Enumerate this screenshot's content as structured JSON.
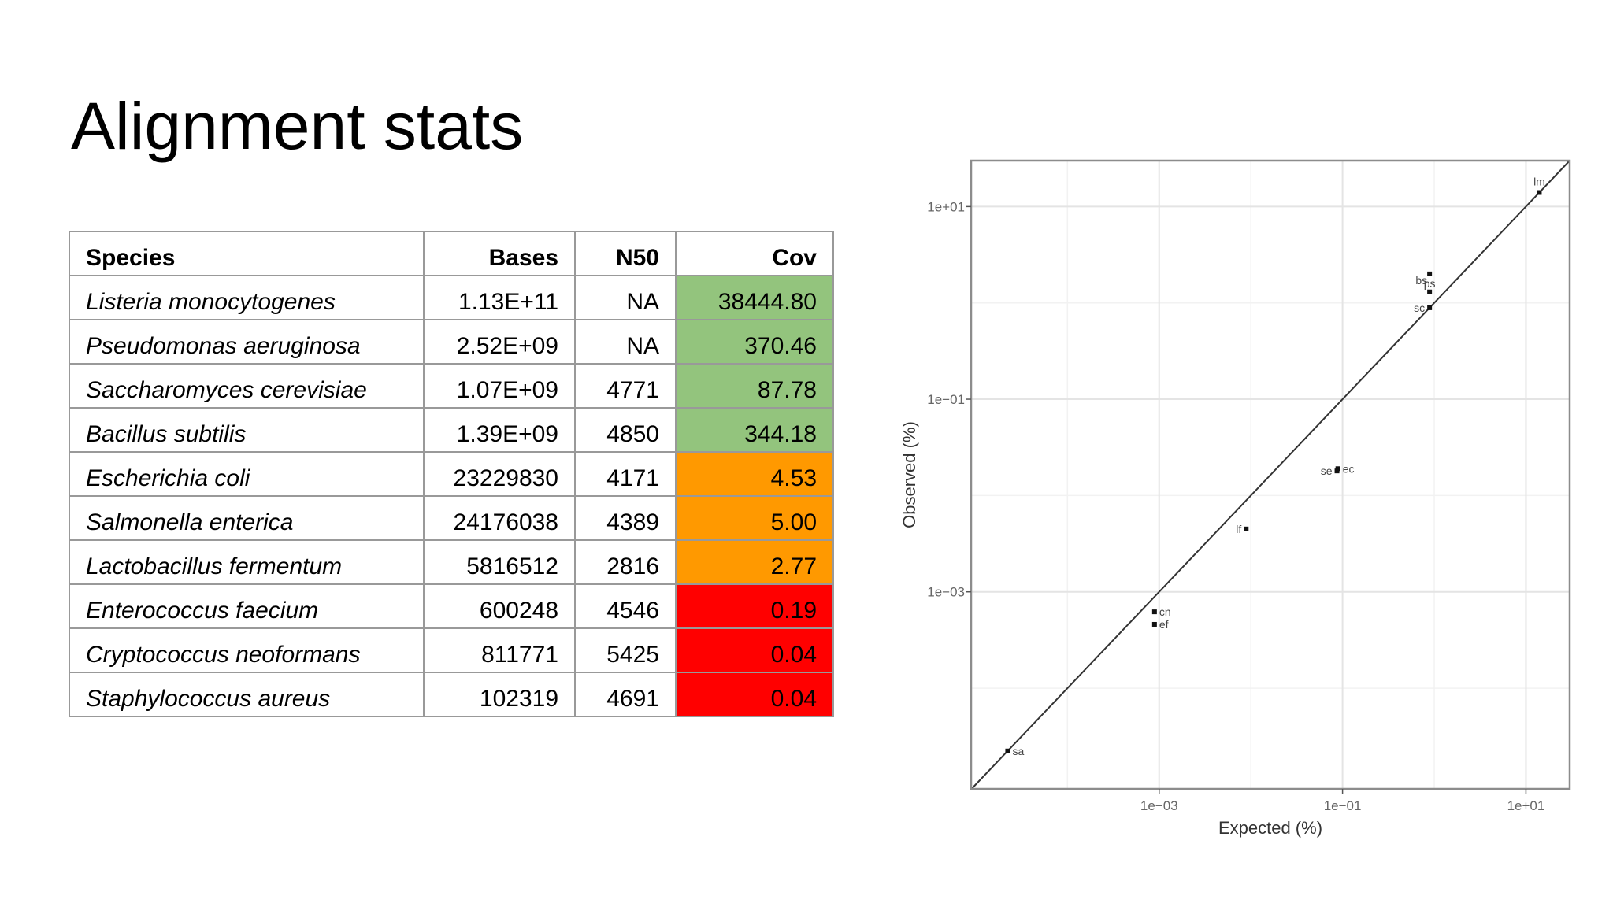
{
  "title": "Alignment stats",
  "table": {
    "headers": [
      "Species",
      "Bases",
      "N50",
      "Cov"
    ],
    "rows": [
      {
        "species": "Listeria monocytogenes",
        "bases": "1.13E+11",
        "n50": "NA",
        "cov": "38444.80",
        "status": "good"
      },
      {
        "species": "Pseudomonas aeruginosa",
        "bases": "2.52E+09",
        "n50": "NA",
        "cov": "370.46",
        "status": "good"
      },
      {
        "species": "Saccharomyces cerevisiae",
        "bases": "1.07E+09",
        "n50": "4771",
        "cov": "87.78",
        "status": "good"
      },
      {
        "species": "Bacillus subtilis",
        "bases": "1.39E+09",
        "n50": "4850",
        "cov": "344.18",
        "status": "good"
      },
      {
        "species": "Escherichia coli",
        "bases": "23229830",
        "n50": "4171",
        "cov": "4.53",
        "status": "medium"
      },
      {
        "species": "Salmonella enterica",
        "bases": "24176038",
        "n50": "4389",
        "cov": "5.00",
        "status": "medium"
      },
      {
        "species": "Lactobacillus fermentum",
        "bases": "5816512",
        "n50": "2816",
        "cov": "2.77",
        "status": "medium"
      },
      {
        "species": "Enterococcus faecium",
        "bases": "600248",
        "n50": "4546",
        "cov": "0.19",
        "status": "poor"
      },
      {
        "species": "Cryptococcus neoformans",
        "bases": "811771",
        "n50": "5425",
        "cov": "0.04",
        "status": "poor"
      },
      {
        "species": "Staphylococcus aureus",
        "bases": "102319",
        "n50": "4691",
        "cov": "0.04",
        "status": "poor"
      }
    ],
    "status_colors": {
      "good": "#93c47d",
      "medium": "#ff9900",
      "poor": "#ff0000"
    }
  },
  "chart_data": {
    "type": "scatter",
    "xlabel": "Expected (%)",
    "ylabel": "Observed (%)",
    "x_scale": "log10",
    "y_scale": "log10",
    "xlim": [
      8.9e-06,
      30
    ],
    "ylim": [
      9e-06,
      30
    ],
    "x_ticks": [
      {
        "value": 0.001,
        "label": "1e−03"
      },
      {
        "value": 0.1,
        "label": "1e−01"
      },
      {
        "value": 10,
        "label": "1e+01"
      }
    ],
    "y_ticks": [
      {
        "value": 0.001,
        "label": "1e−03"
      },
      {
        "value": 0.1,
        "label": "1e−01"
      },
      {
        "value": 10,
        "label": "1e+01"
      }
    ],
    "reference_line": "y = x",
    "grid": true,
    "points": [
      {
        "label": "lm",
        "x": 14,
        "y": 14,
        "label_pos": "above"
      },
      {
        "label": "ps",
        "x": 0.89,
        "y": 2.0,
        "label_pos": "below"
      },
      {
        "label": "bs",
        "x": 0.89,
        "y": 1.3,
        "label_pos": "above-left"
      },
      {
        "label": "sc",
        "x": 0.89,
        "y": 0.89,
        "label_pos": "left"
      },
      {
        "label": "ec",
        "x": 0.089,
        "y": 0.019,
        "label_pos": "right"
      },
      {
        "label": "se",
        "x": 0.087,
        "y": 0.018,
        "label_pos": "left"
      },
      {
        "label": "lf",
        "x": 0.0089,
        "y": 0.0045,
        "label_pos": "left"
      },
      {
        "label": "cn",
        "x": 0.00089,
        "y": 0.00062,
        "label_pos": "right"
      },
      {
        "label": "ef",
        "x": 0.00089,
        "y": 0.00046,
        "label_pos": "right"
      },
      {
        "label": "sa",
        "x": 2.23e-05,
        "y": 2.23e-05,
        "label_pos": "right"
      }
    ]
  }
}
